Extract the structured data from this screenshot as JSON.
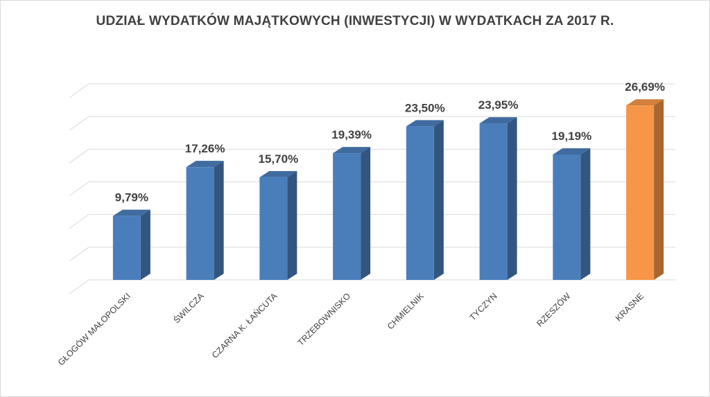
{
  "chart_data": {
    "type": "bar",
    "title": "UDZIAŁ WYDATKÓW MAJĄTKOWYCH (INWESTYCJI) W WYDATKACH ZA 2017 R.",
    "categories": [
      "GŁOGÓW MAŁOPOLSKI",
      "ŚWILCZA",
      "CZARNA K. ŁAŃCUTA",
      "TRZEBOWNISKO",
      "CHMIELNIK",
      "TYCZYN",
      "RZESZÓW",
      "KRASNE"
    ],
    "values": [
      9.79,
      17.26,
      15.7,
      19.39,
      23.5,
      23.95,
      19.19,
      26.69
    ],
    "value_labels": [
      "9,79%",
      "17,26%",
      "15,70%",
      "19,39%",
      "23,50%",
      "23,95%",
      "19,19%",
      "26,69%"
    ],
    "ylim": [
      0,
      30
    ],
    "grid": true,
    "bar_style": "3d-column",
    "colors": {
      "default_bar": "#4a7ebb",
      "highlight_bar": "#f79646",
      "highlight_index": 7,
      "grid": "#d9d9d9",
      "text": "#404040"
    }
  }
}
